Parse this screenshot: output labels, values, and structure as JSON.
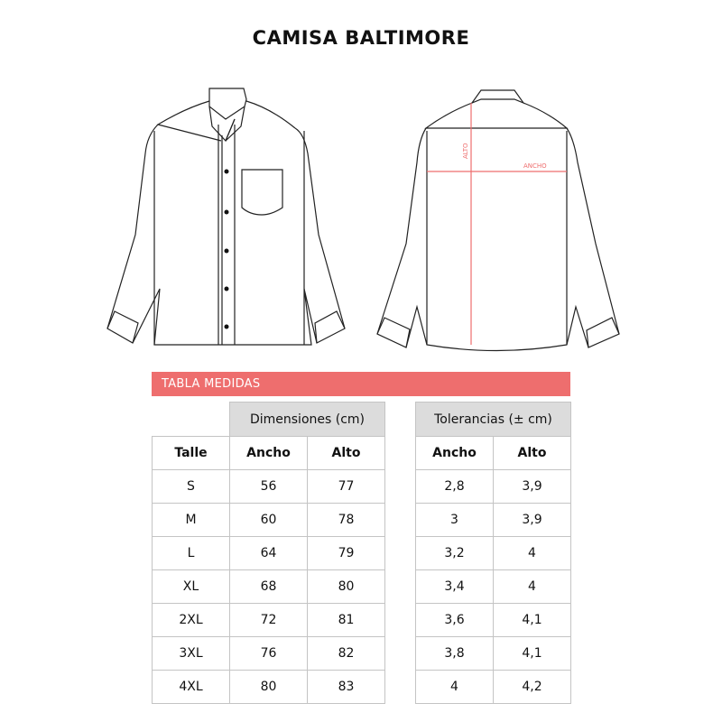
{
  "title": "CAMISA BALTIMORE",
  "diagram": {
    "alto_label": "ALTO",
    "ancho_label": "ANCHO",
    "accent_color": "#ee6e6e"
  },
  "banner": "TABLA MEDIDAS",
  "dimensions": {
    "group": "Dimensiones (cm)",
    "headers": [
      "Talle",
      "Ancho",
      "Alto"
    ],
    "rows": [
      [
        "S",
        "56",
        "77"
      ],
      [
        "M",
        "60",
        "78"
      ],
      [
        "L",
        "64",
        "79"
      ],
      [
        "XL",
        "68",
        "80"
      ],
      [
        "2XL",
        "72",
        "81"
      ],
      [
        "3XL",
        "76",
        "82"
      ],
      [
        "4XL",
        "80",
        "83"
      ]
    ]
  },
  "tolerances": {
    "group": "Tolerancias (± cm)",
    "headers": [
      "Ancho",
      "Alto"
    ],
    "rows": [
      [
        "2,8",
        "3,9"
      ],
      [
        "3",
        "3,9"
      ],
      [
        "3,2",
        "4"
      ],
      [
        "3,4",
        "4"
      ],
      [
        "3,6",
        "4,1"
      ],
      [
        "3,8",
        "4,1"
      ],
      [
        "4",
        "4,2"
      ]
    ]
  }
}
